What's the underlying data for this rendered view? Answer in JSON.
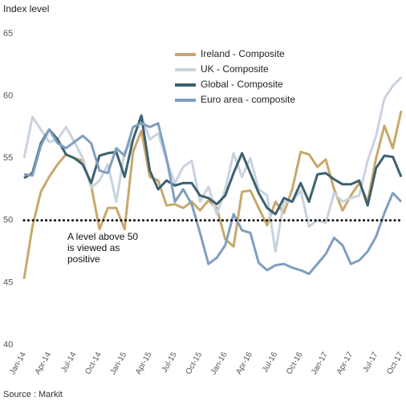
{
  "chart_data": {
    "type": "line",
    "title": "Index level",
    "source": "Source : Markit",
    "annotation": [
      "A level above 50",
      "is viewed as",
      "positive"
    ],
    "reference_line": 50,
    "categories": [
      "Jan-14",
      null,
      null,
      "Apr-14",
      null,
      null,
      "Jul-14",
      null,
      null,
      "Oct-14",
      null,
      null,
      "Jan-15",
      null,
      null,
      "Apr-15",
      null,
      null,
      "Jul-15",
      null,
      null,
      "Oct-15",
      null,
      null,
      "Jan-16",
      null,
      null,
      "Apr-16",
      null,
      null,
      "Jul-16",
      null,
      null,
      "Oct-16",
      null,
      null,
      "Jan-17",
      null,
      null,
      "Apr-17",
      null,
      null,
      "Jul-17",
      null,
      null,
      "Oct-17"
    ],
    "series": [
      {
        "name": "Ireland - Composite",
        "color": "#c8a86b",
        "values": [
          45.3,
          49.5,
          52.3,
          53.5,
          54.5,
          55.3,
          55,
          54.8,
          52.8,
          49.3,
          51,
          51,
          49.3,
          55.5,
          57.2,
          53.5,
          53.2,
          51.2,
          51.3,
          51,
          51.5,
          50.8,
          51.6,
          51,
          48.5,
          47.9,
          52.3,
          52.4,
          51,
          49.6,
          51.5,
          50.6,
          52.5,
          55.5,
          55.3,
          54.3,
          54.9,
          52.5,
          50.8,
          52,
          53,
          51.5,
          55,
          57.6,
          55.8,
          58.8
        ]
      },
      {
        "name": "UK - Composite",
        "color": "#c9d3df",
        "values": [
          55,
          58.3,
          57.3,
          56.3,
          56.5,
          57.5,
          56.3,
          55,
          52.6,
          53.2,
          54.5,
          51.5,
          55.5,
          56.5,
          58.5,
          56.5,
          57,
          54.8,
          53,
          54.3,
          54.8,
          51.5,
          52.7,
          50.5,
          52.5,
          55.4,
          53.5,
          55,
          52.5,
          52,
          47.5,
          51.5,
          51.5,
          52.4,
          49.5,
          50,
          49.8,
          52.2,
          51.5,
          51.8,
          52,
          54.8,
          56.8,
          59.8,
          60.8,
          61.5
        ]
      },
      {
        "name": "Global - Composite",
        "color": "#3d6170",
        "values": [
          53.4,
          53.8,
          56.2,
          57.3,
          56.5,
          55.3,
          55,
          54.5,
          53,
          55.2,
          55.4,
          55.5,
          53.5,
          56.5,
          58.4,
          54,
          52.5,
          53.2,
          52.8,
          53,
          53,
          52,
          51.8,
          51.3,
          52,
          53.8,
          55.4,
          53.8,
          52.2,
          51,
          50.5,
          51.8,
          51.5,
          53,
          51.5,
          53.7,
          53.8,
          53.3,
          52.9,
          52.9,
          53.2,
          51.2,
          54.2,
          55.2,
          55.1,
          53.5
        ]
      },
      {
        "name": "Euro area - composite",
        "color": "#7f9fbf",
        "values": [
          53.7,
          53.6,
          56,
          57.3,
          56.2,
          55.8,
          56.3,
          56.8,
          56.2,
          54,
          53.8,
          55.8,
          55.2,
          57.5,
          57.8,
          57.5,
          57.8,
          55,
          51.5,
          52.5,
          51.3,
          49,
          46.5,
          47,
          48,
          50.5,
          49.2,
          49,
          46.6,
          46,
          46.4,
          46.5,
          46.2,
          46,
          45.7,
          46.5,
          47.3,
          48.6,
          48,
          46.5,
          46.8,
          47.5,
          48.7,
          50.6,
          52.2,
          51.5
        ]
      }
    ],
    "ylim": [
      40,
      65
    ],
    "yticks": [
      40,
      45,
      50,
      55,
      60,
      65
    ],
    "grid": false
  }
}
